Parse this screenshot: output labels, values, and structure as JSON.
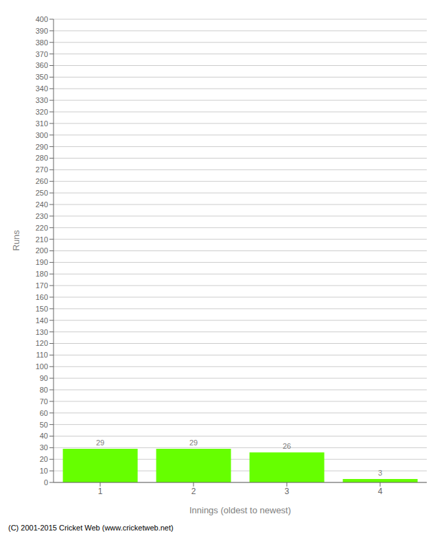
{
  "chart_data": {
    "type": "bar",
    "categories": [
      "1",
      "2",
      "3",
      "4"
    ],
    "values": [
      29,
      29,
      26,
      3
    ],
    "color": "#66ff00",
    "xlabel": "Innings (oldest to newest)",
    "ylabel": "Runs",
    "ylim": [
      0,
      400
    ],
    "yticks": [
      0,
      10,
      20,
      30,
      40,
      50,
      60,
      70,
      80,
      90,
      100,
      110,
      120,
      130,
      140,
      150,
      160,
      170,
      180,
      190,
      200,
      210,
      220,
      230,
      240,
      250,
      260,
      270,
      280,
      290,
      300,
      310,
      320,
      330,
      340,
      350,
      360,
      370,
      380,
      390,
      400
    ],
    "grid": true,
    "data_labels": true,
    "annotations": [
      "(C) 2001-2015 Cricket Web (www.cricketweb.net)"
    ]
  }
}
